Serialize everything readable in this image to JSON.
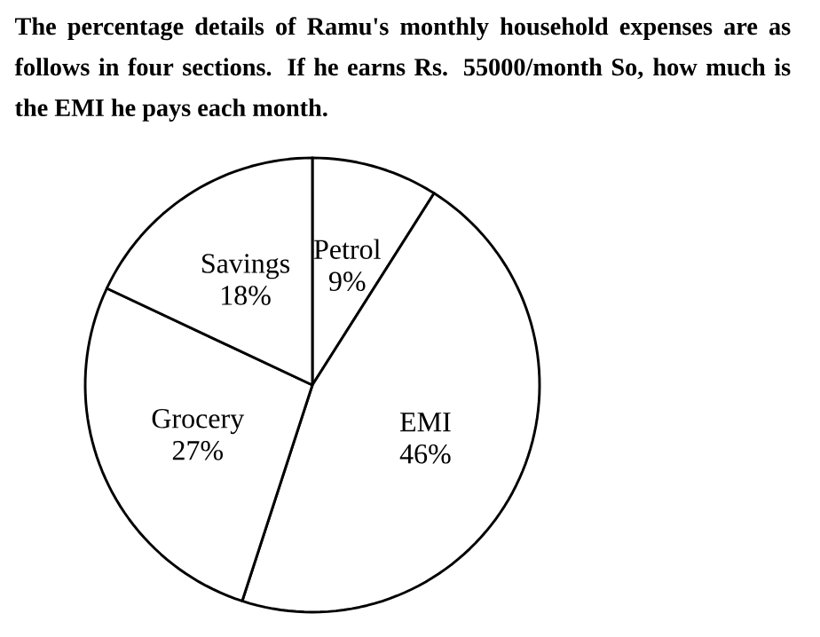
{
  "chart_data": {
    "type": "pie",
    "title": "The percentage details of Ramu's monthly household expenses are as follows in four sections. If he earns Rs. 55000/month So, how much is the EMI he pays each month.",
    "categories": [
      "Petrol",
      "EMI",
      "Grocery",
      "Savings"
    ],
    "values": [
      9,
      46,
      27,
      18
    ],
    "value_labels": [
      "9%",
      "46%",
      "27%",
      "18%"
    ],
    "colors": [
      "#ffffff",
      "#ffffff",
      "#ffffff",
      "#ffffff"
    ]
  }
}
